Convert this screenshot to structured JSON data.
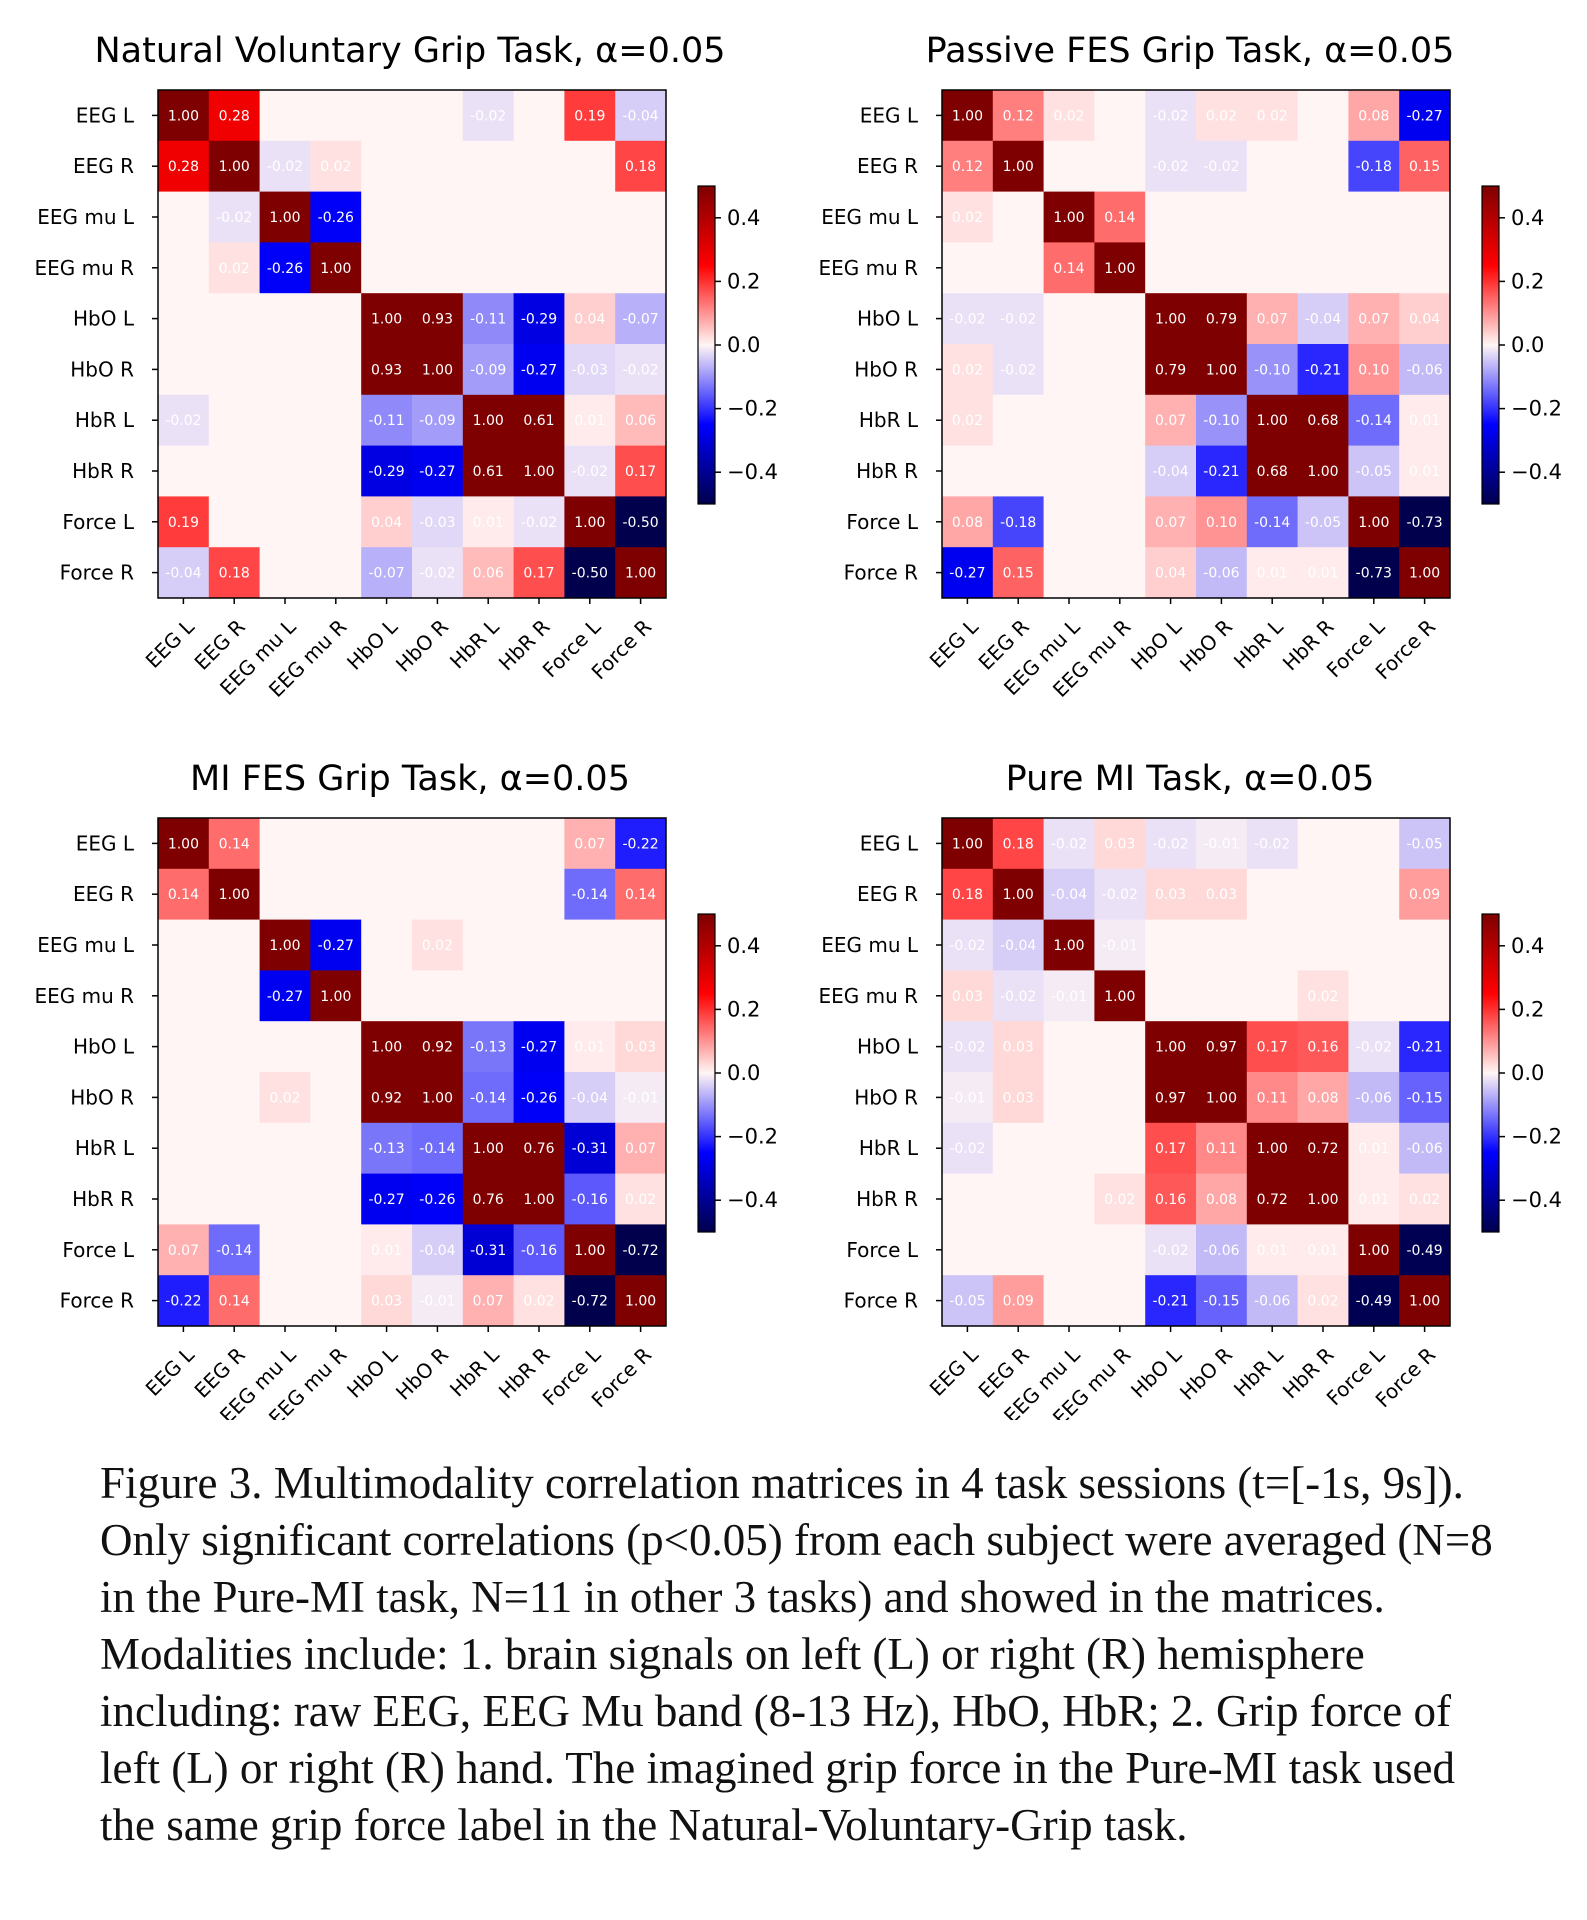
{
  "chart_data": [
    {
      "type": "heatmap",
      "title": "Natural Voluntary Grip Task, α=0.05",
      "labels": [
        "EEG L",
        "EEG R",
        "EEG mu L",
        "EEG mu R",
        "HbO L",
        "HbO R",
        "HbR L",
        "HbR R",
        "Force L",
        "Force R"
      ],
      "values": [
        [
          1.0,
          0.28,
          null,
          null,
          null,
          null,
          -0.02,
          null,
          0.19,
          -0.04
        ],
        [
          0.28,
          1.0,
          -0.02,
          0.02,
          null,
          null,
          null,
          null,
          null,
          0.18
        ],
        [
          null,
          -0.02,
          1.0,
          -0.26,
          null,
          null,
          null,
          null,
          null,
          null
        ],
        [
          null,
          0.02,
          -0.26,
          1.0,
          null,
          null,
          null,
          null,
          null,
          null
        ],
        [
          null,
          null,
          null,
          null,
          1.0,
          0.93,
          -0.11,
          -0.29,
          0.04,
          -0.07
        ],
        [
          null,
          null,
          null,
          null,
          0.93,
          1.0,
          -0.09,
          -0.27,
          -0.03,
          -0.02
        ],
        [
          -0.02,
          null,
          null,
          null,
          -0.11,
          -0.09,
          1.0,
          0.61,
          0.01,
          0.06
        ],
        [
          null,
          null,
          null,
          null,
          -0.29,
          -0.27,
          0.61,
          1.0,
          -0.02,
          0.17
        ],
        [
          0.19,
          null,
          null,
          null,
          0.04,
          -0.03,
          0.01,
          -0.02,
          1.0,
          -0.5
        ],
        [
          -0.04,
          0.18,
          null,
          null,
          -0.07,
          -0.02,
          0.06,
          0.17,
          -0.5,
          1.0
        ]
      ],
      "colorbar": {
        "range": [
          -0.5,
          0.5
        ],
        "ticks": [
          "0.4",
          "0.2",
          "0.0",
          "−0.2",
          "−0.4"
        ],
        "tick_values": [
          0.4,
          0.2,
          0.0,
          -0.2,
          -0.4
        ]
      }
    },
    {
      "type": "heatmap",
      "title": "Passive FES Grip Task, α=0.05",
      "labels": [
        "EEG L",
        "EEG R",
        "EEG mu L",
        "EEG mu R",
        "HbO L",
        "HbO R",
        "HbR L",
        "HbR R",
        "Force L",
        "Force R"
      ],
      "values": [
        [
          1.0,
          0.12,
          0.02,
          null,
          -0.02,
          0.02,
          0.02,
          null,
          0.08,
          -0.27
        ],
        [
          0.12,
          1.0,
          null,
          null,
          -0.02,
          -0.02,
          null,
          null,
          -0.18,
          0.15
        ],
        [
          0.02,
          null,
          1.0,
          0.14,
          null,
          null,
          null,
          null,
          null,
          null
        ],
        [
          null,
          null,
          0.14,
          1.0,
          null,
          null,
          null,
          null,
          null,
          null
        ],
        [
          -0.02,
          -0.02,
          null,
          null,
          1.0,
          0.79,
          0.07,
          -0.04,
          0.07,
          0.04
        ],
        [
          0.02,
          -0.02,
          null,
          null,
          0.79,
          1.0,
          -0.1,
          -0.21,
          0.1,
          -0.06
        ],
        [
          0.02,
          null,
          null,
          null,
          0.07,
          -0.1,
          1.0,
          0.68,
          -0.14,
          0.01
        ],
        [
          null,
          null,
          null,
          null,
          -0.04,
          -0.21,
          0.68,
          1.0,
          -0.05,
          0.01
        ],
        [
          0.08,
          -0.18,
          null,
          null,
          0.07,
          0.1,
          -0.14,
          -0.05,
          1.0,
          -0.73
        ],
        [
          -0.27,
          0.15,
          null,
          null,
          0.04,
          -0.06,
          0.01,
          0.01,
          -0.73,
          1.0
        ]
      ],
      "colorbar": {
        "range": [
          -0.5,
          0.5
        ],
        "ticks": [
          "0.4",
          "0.2",
          "0.0",
          "−0.2",
          "−0.4"
        ],
        "tick_values": [
          0.4,
          0.2,
          0.0,
          -0.2,
          -0.4
        ]
      }
    },
    {
      "type": "heatmap",
      "title": "MI FES Grip Task, α=0.05",
      "labels": [
        "EEG L",
        "EEG R",
        "EEG mu L",
        "EEG mu R",
        "HbO L",
        "HbO R",
        "HbR L",
        "HbR R",
        "Force L",
        "Force R"
      ],
      "values": [
        [
          1.0,
          0.14,
          null,
          null,
          null,
          null,
          null,
          null,
          0.07,
          -0.22
        ],
        [
          0.14,
          1.0,
          null,
          null,
          null,
          null,
          null,
          null,
          -0.14,
          0.14
        ],
        [
          null,
          null,
          1.0,
          -0.27,
          null,
          0.02,
          null,
          null,
          null,
          null
        ],
        [
          null,
          null,
          -0.27,
          1.0,
          null,
          null,
          null,
          null,
          null,
          null
        ],
        [
          null,
          null,
          null,
          null,
          1.0,
          0.92,
          -0.13,
          -0.27,
          0.01,
          0.03
        ],
        [
          null,
          null,
          0.02,
          null,
          0.92,
          1.0,
          -0.14,
          -0.26,
          -0.04,
          -0.01
        ],
        [
          null,
          null,
          null,
          null,
          -0.13,
          -0.14,
          1.0,
          0.76,
          -0.31,
          0.07
        ],
        [
          null,
          null,
          null,
          null,
          -0.27,
          -0.26,
          0.76,
          1.0,
          -0.16,
          0.02
        ],
        [
          0.07,
          -0.14,
          null,
          null,
          0.01,
          -0.04,
          -0.31,
          -0.16,
          1.0,
          -0.72
        ],
        [
          -0.22,
          0.14,
          null,
          null,
          0.03,
          -0.01,
          0.07,
          0.02,
          -0.72,
          1.0
        ]
      ],
      "colorbar": {
        "range": [
          -0.5,
          0.5
        ],
        "ticks": [
          "0.4",
          "0.2",
          "0.0",
          "−0.2",
          "−0.4"
        ],
        "tick_values": [
          0.4,
          0.2,
          0.0,
          -0.2,
          -0.4
        ]
      }
    },
    {
      "type": "heatmap",
      "title": "Pure MI Task, α=0.05",
      "labels": [
        "EEG L",
        "EEG R",
        "EEG mu L",
        "EEG mu R",
        "HbO L",
        "HbO R",
        "HbR L",
        "HbR R",
        "Force L",
        "Force R"
      ],
      "values": [
        [
          1.0,
          0.18,
          -0.02,
          0.03,
          -0.02,
          -0.01,
          -0.02,
          null,
          null,
          -0.05
        ],
        [
          0.18,
          1.0,
          -0.04,
          -0.02,
          0.03,
          0.03,
          null,
          null,
          null,
          0.09
        ],
        [
          -0.02,
          -0.04,
          1.0,
          -0.01,
          null,
          null,
          null,
          null,
          null,
          null
        ],
        [
          0.03,
          -0.02,
          -0.01,
          1.0,
          null,
          null,
          null,
          0.02,
          null,
          null
        ],
        [
          -0.02,
          0.03,
          null,
          null,
          1.0,
          0.97,
          0.17,
          0.16,
          -0.02,
          -0.21
        ],
        [
          -0.01,
          0.03,
          null,
          null,
          0.97,
          1.0,
          0.11,
          0.08,
          -0.06,
          -0.15
        ],
        [
          -0.02,
          null,
          null,
          null,
          0.17,
          0.11,
          1.0,
          0.72,
          0.01,
          -0.06
        ],
        [
          null,
          null,
          null,
          0.02,
          0.16,
          0.08,
          0.72,
          1.0,
          0.01,
          0.02
        ],
        [
          null,
          null,
          null,
          null,
          -0.02,
          -0.06,
          0.01,
          0.01,
          1.0,
          -0.49
        ],
        [
          -0.05,
          0.09,
          null,
          null,
          -0.21,
          -0.15,
          -0.06,
          0.02,
          -0.49,
          1.0
        ]
      ],
      "colorbar": {
        "range": [
          -0.5,
          0.5
        ],
        "ticks": [
          "0.4",
          "0.2",
          "0.0",
          "−0.2",
          "−0.4"
        ],
        "tick_values": [
          0.4,
          0.2,
          0.0,
          -0.2,
          -0.4
        ]
      }
    }
  ],
  "caption": "Figure 3.  Multimodality correlation matrices in 4 task sessions (t=[-1s, 9s]). Only significant correlations (p<0.05) from each subject were averaged (N=8 in the Pure-MI task, N=11 in other 3 tasks) and showed in the matrices. Modalities include: 1. brain signals on left (L) or right (R) hemisphere including: raw EEG, EEG Mu band (8-13 Hz), HbO, HbR; 2. Grip force of left (L) or right (R) hand. The imagined grip force in the Pure-MI task used the same grip force label in the  Natural-Voluntary-Grip task.",
  "colors": {
    "low": "#00004c",
    "mid": "#fff5f5",
    "high": "#7f0000"
  }
}
